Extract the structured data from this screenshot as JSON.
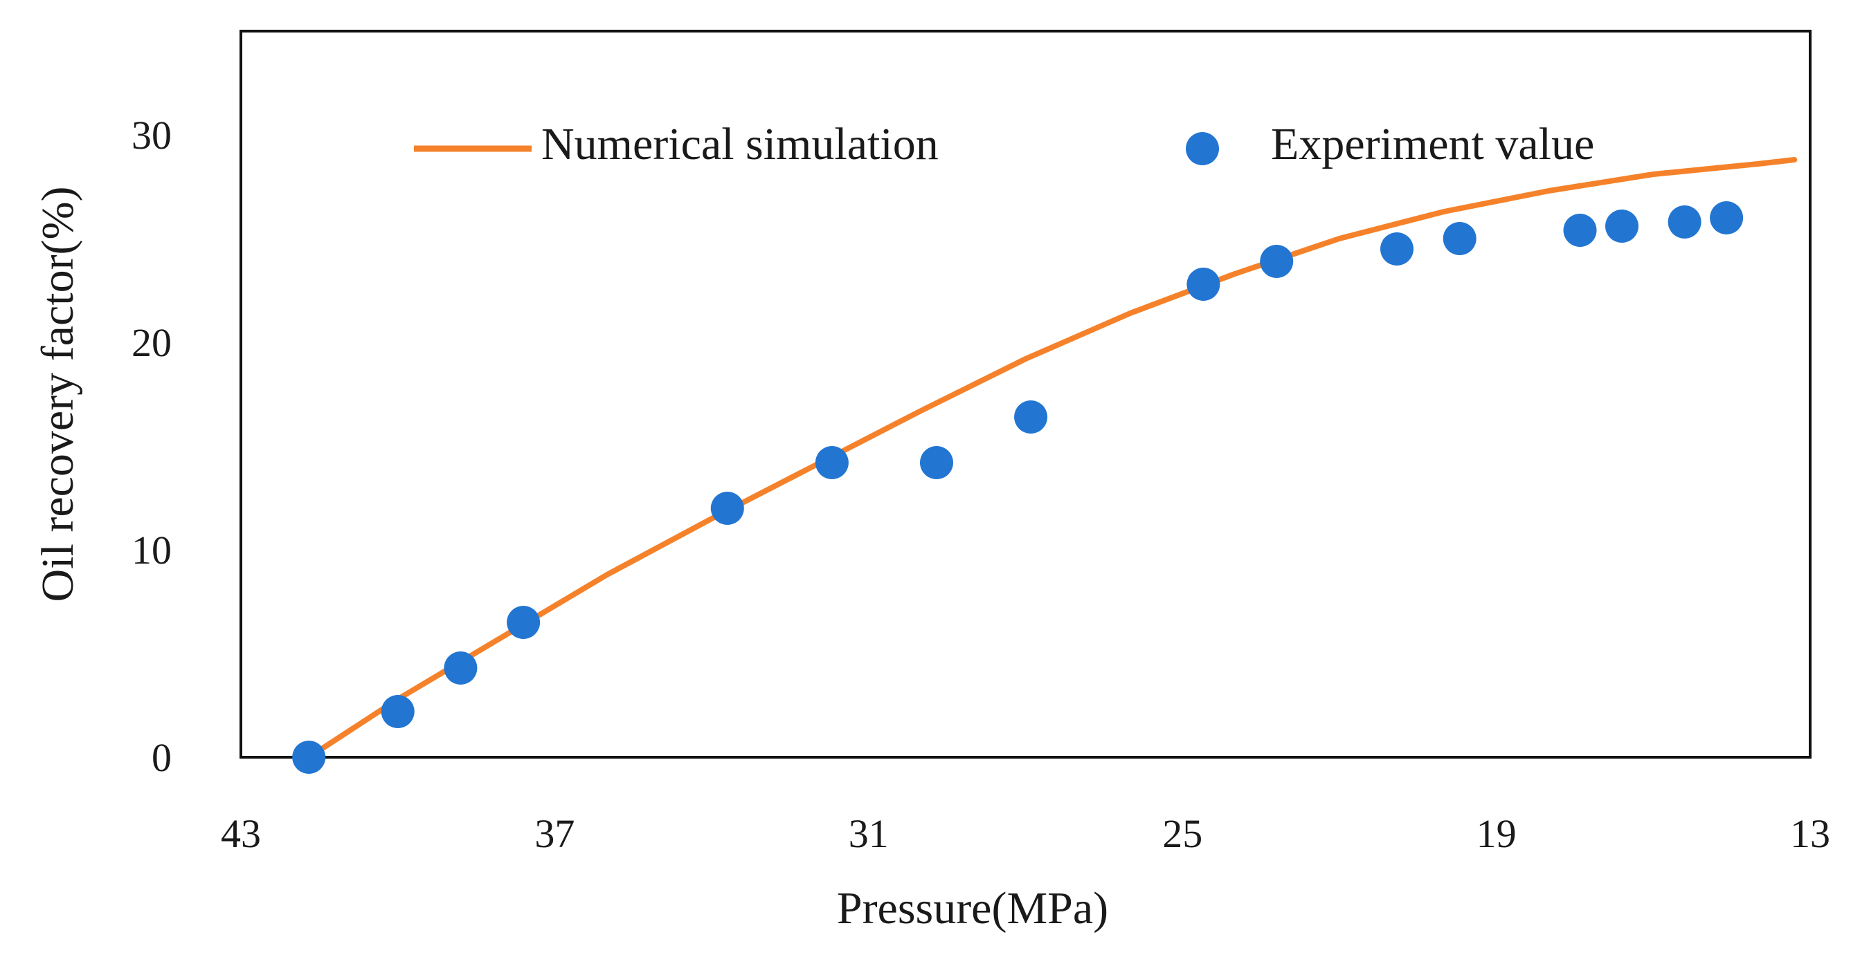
{
  "chart_data": {
    "type": "line+scatter",
    "title": "",
    "xlabel": "Pressure(MPa)",
    "ylabel": "Oil recovery factor(%)",
    "xlim": [
      43,
      13
    ],
    "ylim": [
      0,
      35
    ],
    "x_ticks": [
      43,
      37,
      31,
      25,
      19,
      13
    ],
    "y_ticks": [
      0,
      10,
      20,
      30
    ],
    "legend_position": "top",
    "grid": false,
    "series": [
      {
        "name": "Numerical simulation",
        "kind": "line",
        "color": "#F5822A",
        "x": [
          41.7,
          40,
          38,
          36,
          34,
          32,
          30,
          28,
          26,
          24,
          22,
          20,
          18,
          16,
          14,
          13.3
        ],
        "y": [
          0,
          2.8,
          5.8,
          8.8,
          11.5,
          14.1,
          16.7,
          19.2,
          21.4,
          23.3,
          25.0,
          26.3,
          27.3,
          28.1,
          28.6,
          28.8
        ]
      },
      {
        "name": "Experiment value",
        "kind": "scatter",
        "color": "#2276D2",
        "x": [
          41.7,
          40.0,
          38.8,
          37.6,
          33.7,
          31.7,
          29.7,
          27.9,
          24.6,
          23.2,
          20.9,
          19.7,
          17.4,
          16.6,
          15.4,
          14.6
        ],
        "y": [
          0,
          2.2,
          4.3,
          6.5,
          12.0,
          14.2,
          14.2,
          16.4,
          22.8,
          23.9,
          24.5,
          25.0,
          25.4,
          25.6,
          25.8,
          26.0
        ]
      }
    ]
  }
}
